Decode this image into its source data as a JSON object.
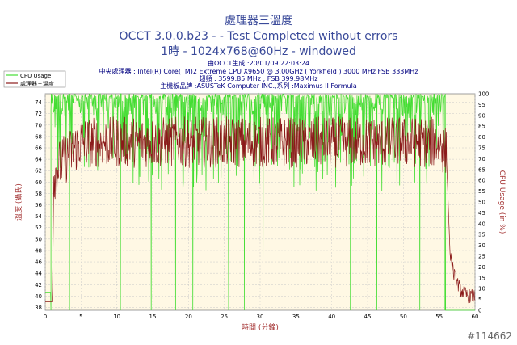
{
  "chart_data": {
    "type": "line",
    "title_line1": "處理器三溫度",
    "title_line2": "OCCT 3.0.0.b23 -  - Test Completed without errors",
    "title_line3": "1時 - 1024x768@60Hz - windowed",
    "info": {
      "generated": "由OCCT生成 :20/01/09 22:03:24",
      "cpu": "中央處理器 : Intel(R) Core(TM)2 Extreme CPU X9650 @ 3.00GHz ( Yorkfield ) 3000 MHz FSB 333MHz",
      "clock": "超頻 : 3599.85 MHz ; FSB 399.98MHz",
      "board": "主機板品牌 :ASUSTeK Computer INC.,系列 :Maximus II Formula"
    },
    "legend": [
      "CPU Usage",
      "處理器三溫度"
    ],
    "xlabel": "時間 (分鐘)",
    "ylabel_left": "溫度 (攝氏)",
    "ylabel_right": "CPU Usage (in %)",
    "x_ticks": [
      0,
      5,
      10,
      15,
      20,
      25,
      30,
      35,
      40,
      45,
      50,
      55,
      60
    ],
    "y_left_ticks": [
      38,
      40,
      42,
      44,
      46,
      48,
      50,
      52,
      54,
      56,
      58,
      60,
      62,
      64,
      66,
      68,
      70,
      72,
      74
    ],
    "y_right_ticks": [
      0,
      5,
      10,
      15,
      20,
      25,
      30,
      35,
      40,
      45,
      50,
      55,
      60,
      65,
      70,
      75,
      80,
      85,
      90,
      95,
      100
    ],
    "xlim": [
      0,
      60
    ],
    "ylim_left": [
      37.5,
      75.5
    ],
    "ylim_right": [
      0,
      100
    ],
    "colors": {
      "cpu_usage": "#44dd33",
      "temperature": "#8b1a1a",
      "title": "#3a4a9a",
      "info": "#000080",
      "axis_label": "#a33030"
    },
    "cpu_usage_drops_min": [
      0.8,
      3.4,
      10.5,
      14.8,
      18.2,
      20.6,
      25.6,
      27.8,
      30.4,
      42.6,
      46.3,
      52.3,
      55.8
    ],
    "temperature_keypoints": [
      [
        0,
        39
      ],
      [
        1,
        39
      ],
      [
        1.2,
        61
      ],
      [
        2,
        63
      ],
      [
        5,
        67
      ],
      [
        10,
        67
      ],
      [
        20,
        67
      ],
      [
        30,
        67
      ],
      [
        40,
        67
      ],
      [
        50,
        67
      ],
      [
        55,
        67
      ],
      [
        56.0,
        65
      ],
      [
        56.5,
        48
      ],
      [
        57.0,
        44
      ],
      [
        58.0,
        41
      ],
      [
        59.0,
        40
      ],
      [
        60,
        40
      ]
    ],
    "watermark": "#114662"
  }
}
